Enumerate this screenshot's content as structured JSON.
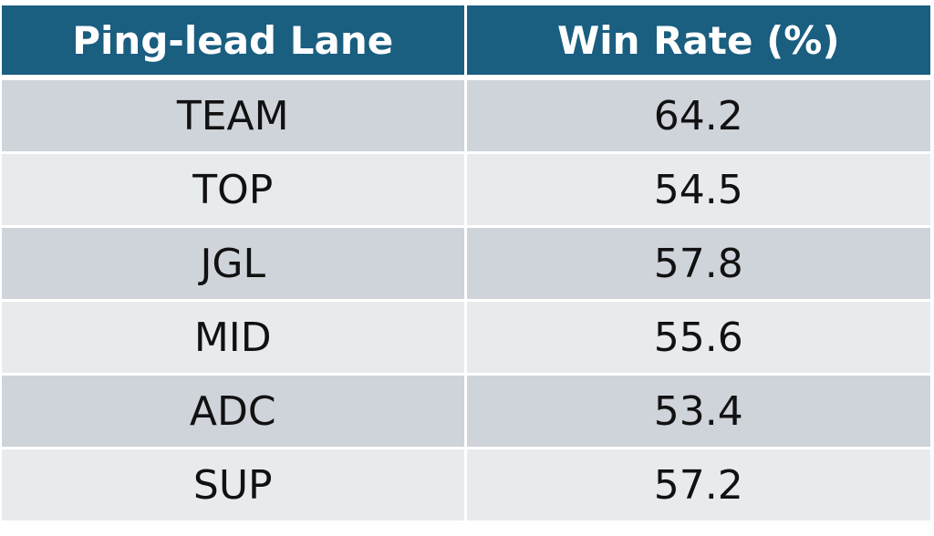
{
  "colors": {
    "header_bg": "#1a5e80",
    "header_text": "#ffffff",
    "row_odd_bg": "#cfd3da",
    "row_even_bg": "#e8ebee",
    "cell_text": "#111111"
  },
  "chart_data": {
    "type": "table",
    "columns": [
      "Ping-lead Lane",
      "Win Rate (%)"
    ],
    "rows": [
      [
        "TEAM",
        "64.2"
      ],
      [
        "TOP",
        "54.5"
      ],
      [
        "JGL",
        "57.8"
      ],
      [
        "MID",
        "55.6"
      ],
      [
        "ADC",
        "53.4"
      ],
      [
        "SUP",
        "57.2"
      ]
    ]
  }
}
